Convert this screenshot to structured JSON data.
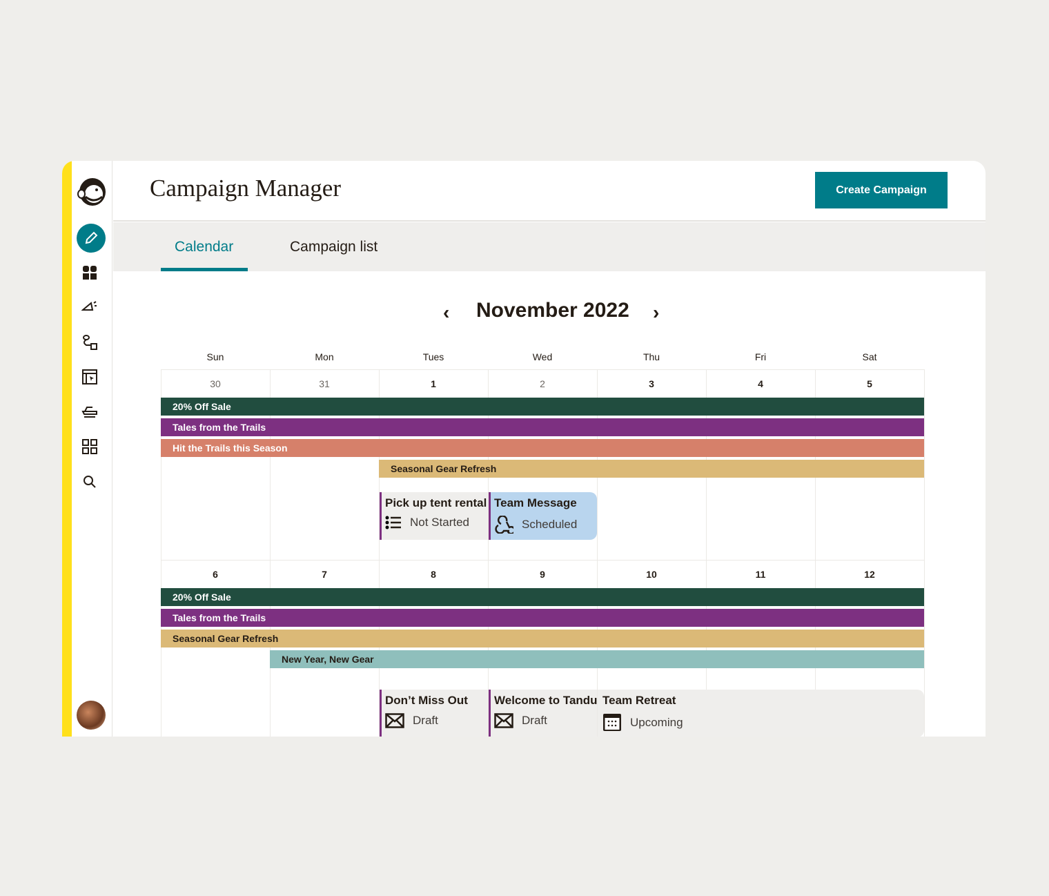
{
  "app": {
    "title": "Campaign Manager",
    "create_label": "Create Campaign"
  },
  "sidebar": {
    "icons": [
      "mailchimp-logo",
      "pencil-icon",
      "audience-icon",
      "megaphone-icon",
      "automation-icon",
      "website-icon",
      "integrations-icon",
      "grid-icon",
      "search-icon"
    ]
  },
  "tabs": [
    {
      "label": "Calendar",
      "active": true
    },
    {
      "label": "Campaign list",
      "active": false
    }
  ],
  "calendar": {
    "month": "November 2022",
    "days": [
      "Sun",
      "Mon",
      "Tues",
      "Wed",
      "Thu",
      "Fri",
      "Sat"
    ],
    "weeks": [
      {
        "dates": [
          "30",
          "31",
          "1",
          "2",
          "3",
          "4",
          "5"
        ],
        "bars": [
          {
            "label": "20% Off Sale",
            "color": "#214d3f",
            "start": 0,
            "span": 7
          },
          {
            "label": "Tales from the Trails",
            "color": "#7d3081",
            "start": 0,
            "span": 7
          },
          {
            "label": "Hit the Trails this Season",
            "color": "#d6806a",
            "start": 0,
            "span": 7
          },
          {
            "label": "Seasonal Gear Refresh",
            "color": "#dbb977",
            "start": 2,
            "span": 5,
            "dark": true
          }
        ],
        "events": [
          {
            "name": "Pick up tent rental",
            "status": "Not Started",
            "icon": "list-icon",
            "start": 2,
            "span": 1
          },
          {
            "name": "Team Message",
            "status": "Scheduled",
            "icon": "webhook-icon",
            "start": 3,
            "span": 1,
            "bg": "#b9d5ee"
          }
        ]
      },
      {
        "dates": [
          "6",
          "7",
          "8",
          "9",
          "10",
          "11",
          "12"
        ],
        "bars": [
          {
            "label": "20% Off Sale",
            "color": "#214d3f",
            "start": 0,
            "span": 7
          },
          {
            "label": "Tales from the Trails",
            "color": "#7d3081",
            "start": 0,
            "span": 7
          },
          {
            "label": "Seasonal Gear Refresh",
            "color": "#dbb977",
            "start": 0,
            "span": 7,
            "dark": true
          },
          {
            "label": "New Year, New Gear",
            "color": "#8fbfbc",
            "start": 1,
            "span": 6,
            "dark": true
          }
        ],
        "events": [
          {
            "name": "Don’t Miss Out",
            "status": "Draft",
            "icon": "envelope-icon",
            "start": 2,
            "span": 1
          },
          {
            "name": "Welcome to Tandu",
            "status": "Draft",
            "icon": "envelope-icon",
            "start": 3,
            "span": 1
          },
          {
            "name": "Team Retreat",
            "status": "Upcoming",
            "icon": "calendar-icon",
            "start": 4,
            "span": 3,
            "noborder": true
          }
        ]
      }
    ]
  }
}
